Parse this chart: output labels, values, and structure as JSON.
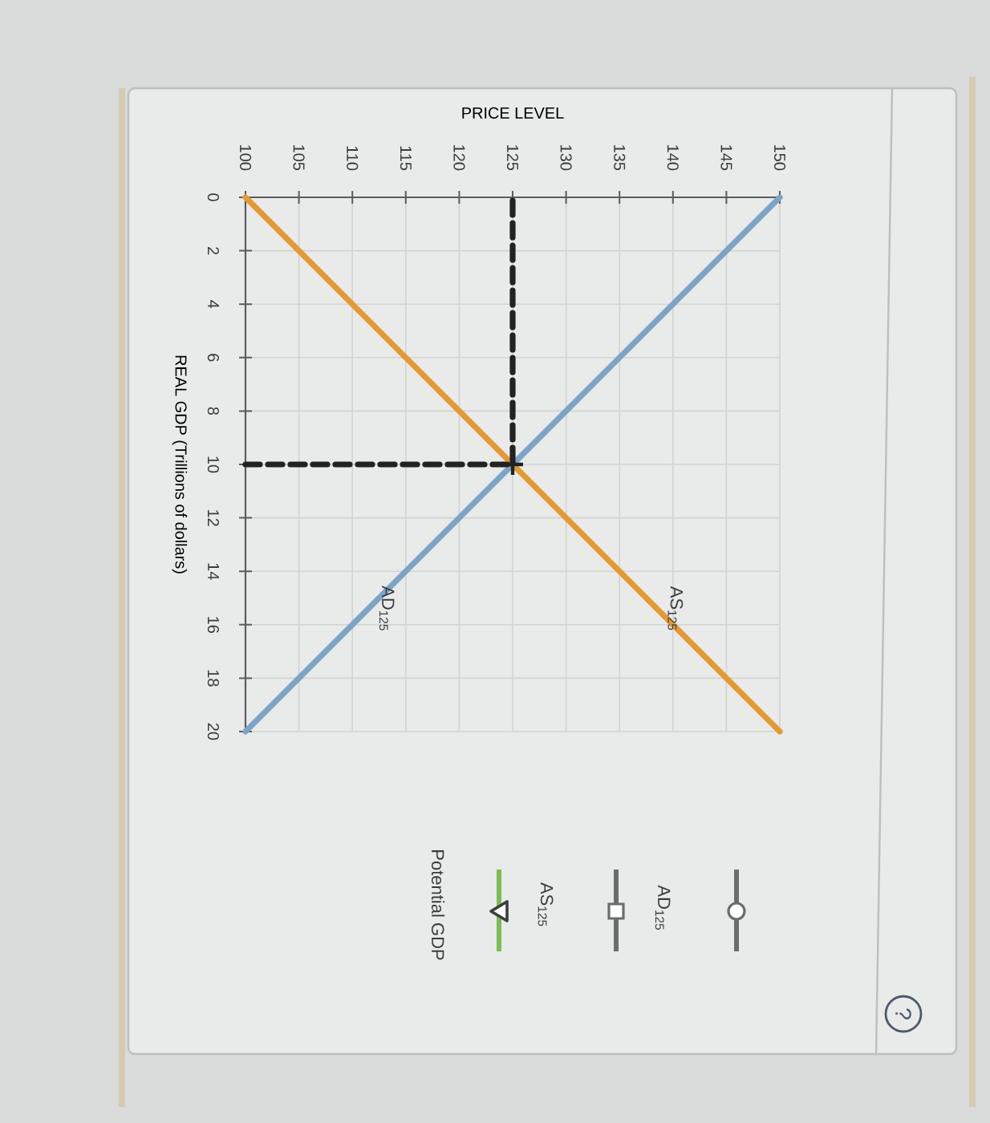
{
  "chart_data": {
    "type": "line",
    "xlabel": "PRICE LEVEL",
    "ylabel": "REAL GDP (Trillions of dollars)",
    "xlim": [
      100,
      150
    ],
    "xticks": [
      100,
      105,
      110,
      115,
      120,
      125,
      130,
      135,
      140,
      145,
      150
    ],
    "ylim": [
      20,
      0
    ],
    "yticks": [
      0,
      2,
      4,
      6,
      8,
      10,
      12,
      14,
      16,
      18,
      20
    ],
    "grid": true,
    "series": [
      {
        "name": "AS$_{125}$",
        "color": "#e39a35",
        "x": [
          100,
          150
        ],
        "values": [
          0,
          20
        ]
      },
      {
        "name": "AD$_{125}$",
        "color": "#7ba4c6",
        "x": [
          100,
          150
        ],
        "values": [
          20,
          0
        ]
      },
      {
        "type": "line",
        "color": "#222222",
        "line_style": "dashed",
        "x": [
          100,
          125,
          125
        ],
        "values": [
          10,
          10,
          0
        ]
      },
      {
        "type": "scatter",
        "color": "#222222",
        "marker": "cross",
        "x": [
          125
        ],
        "values": [
          10
        ]
      }
    ],
    "annotations": [
      "AD$_{125}$",
      "AS$_{125}$",
      "Potential GDP",
      "?"
    ]
  }
}
